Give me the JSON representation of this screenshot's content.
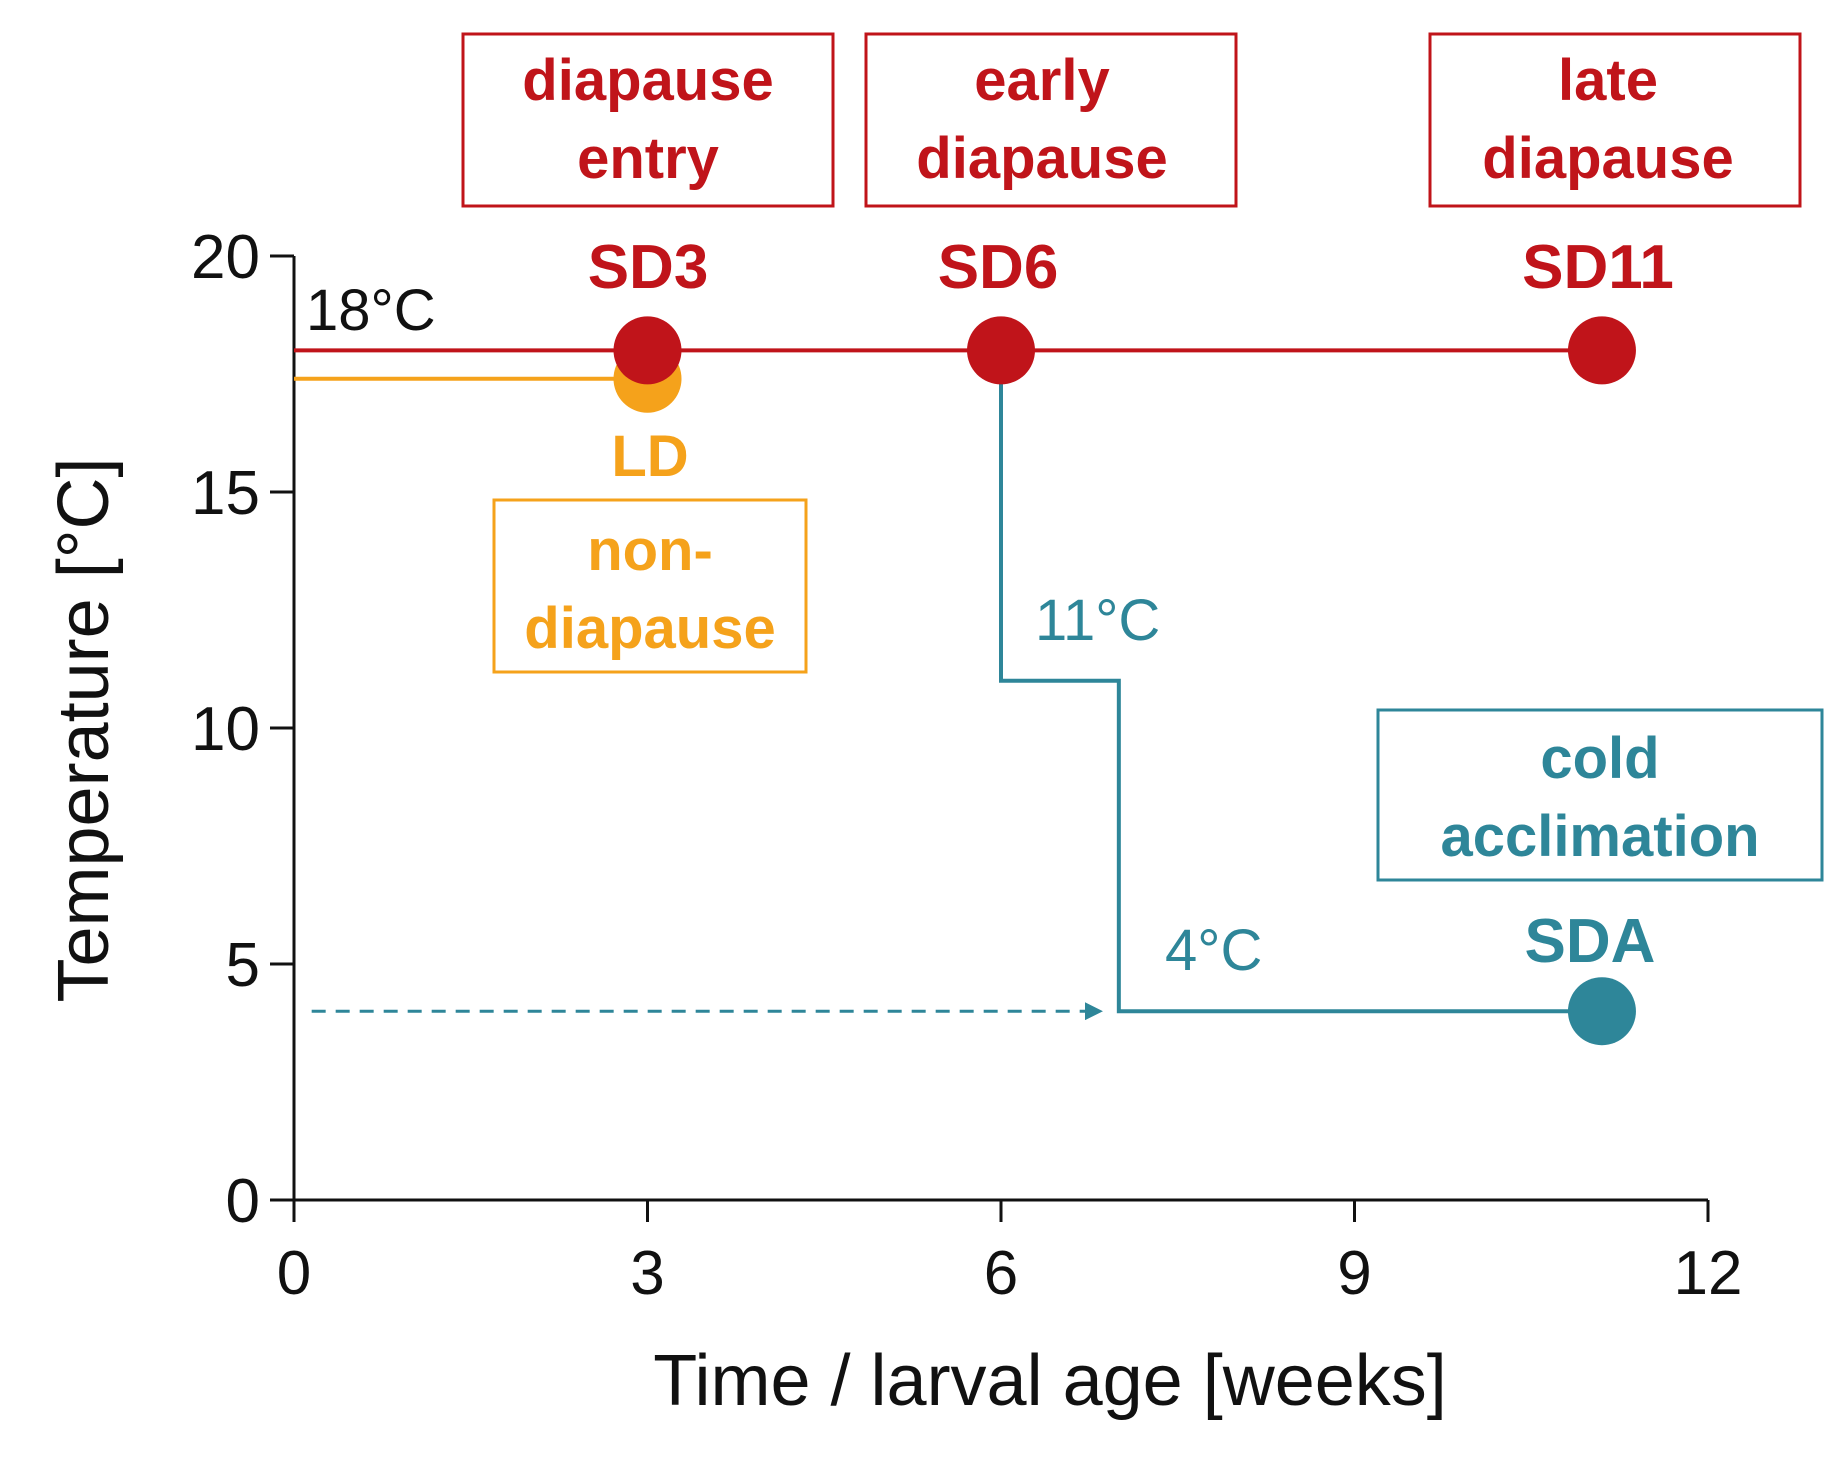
{
  "colors": {
    "axis": "#111111",
    "red": "#c0141a",
    "orange": "#f5a21b",
    "teal": "#2e8699"
  },
  "chart_data": {
    "type": "line",
    "xlabel": "Time / larval age  [weeks]",
    "ylabel": "Temperature [°C]",
    "xlim": [
      0,
      12
    ],
    "ylim": [
      0,
      20
    ],
    "xticks": [
      0,
      3,
      6,
      9,
      12
    ],
    "xtick_labels": [
      "0",
      "3",
      "6",
      "9",
      "12"
    ],
    "yticks": [
      0,
      5,
      10,
      15,
      20
    ],
    "ytick_labels": [
      "0",
      "5",
      "10",
      "15",
      "20"
    ],
    "series": [
      {
        "name": "SD (diapause)",
        "color": "red",
        "line": [
          [
            0,
            18
          ],
          [
            11.1,
            18
          ]
        ],
        "points": [
          {
            "x": 3,
            "y": 18,
            "label": "SD3"
          },
          {
            "x": 6,
            "y": 18,
            "label": "SD6"
          },
          {
            "x": 11.1,
            "y": 18,
            "label": "SD11"
          }
        ]
      },
      {
        "name": "LD (non-diapause)",
        "color": "orange",
        "line": [
          [
            0,
            17.4
          ],
          [
            3,
            17.4
          ]
        ],
        "points": [
          {
            "x": 3,
            "y": 17.4,
            "label": "LD"
          }
        ]
      },
      {
        "name": "SDA (cold acclimation)",
        "color": "teal",
        "line": [
          [
            6,
            18
          ],
          [
            6,
            11
          ],
          [
            7,
            11
          ],
          [
            7,
            4
          ],
          [
            11.1,
            4
          ]
        ],
        "points": [
          {
            "x": 11.1,
            "y": 4,
            "label": "SDA"
          }
        ]
      }
    ],
    "dashed_arrow": {
      "from": [
        0.15,
        4
      ],
      "to": [
        6.85,
        4
      ],
      "color": "teal"
    },
    "annotations": {
      "temp_18": "18°C",
      "temp_11": "11°C",
      "temp_4": "4°C"
    },
    "boxes": {
      "diapause_entry": [
        "diapause",
        "entry"
      ],
      "early_diapause": [
        "early",
        "diapause"
      ],
      "late_diapause": [
        "late",
        "diapause"
      ],
      "non_diapause": [
        "non-",
        "diapause"
      ],
      "cold_acclimation": [
        "cold",
        "acclimation"
      ]
    }
  }
}
